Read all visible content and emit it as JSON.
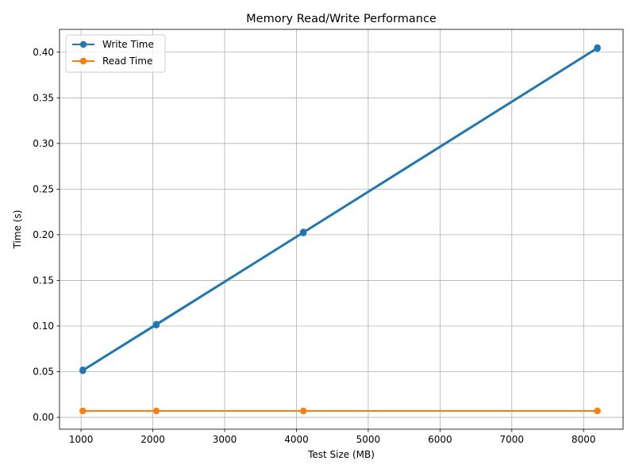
{
  "chart_data": {
    "type": "line",
    "title": "Memory Read/Write Performance",
    "xlabel": "Test Size (MB)",
    "ylabel": "Time (s)",
    "xlim": [
      700,
      8550
    ],
    "ylim": [
      -0.013,
      0.425
    ],
    "xticks": [
      1000,
      2000,
      3000,
      4000,
      5000,
      6000,
      7000,
      8000
    ],
    "yticks": [
      0.0,
      0.05,
      0.1,
      0.15,
      0.2,
      0.25,
      0.3,
      0.35,
      0.4
    ],
    "xtick_labels": [
      "1000",
      "2000",
      "3000",
      "4000",
      "5000",
      "6000",
      "7000",
      "8000"
    ],
    "ytick_labels": [
      "0.00",
      "0.05",
      "0.10",
      "0.15",
      "0.20",
      "0.25",
      "0.30",
      "0.35",
      "0.40"
    ],
    "grid": true,
    "legend_position": "top-left",
    "series": [
      {
        "name": "Write Time",
        "color": "#1f77b4",
        "marker": "circle",
        "x": [
          1024,
          2048,
          4096,
          8192,
          1024,
          2048,
          4096,
          8192
        ],
        "y": [
          0.051,
          0.101,
          0.202,
          0.404,
          0.052,
          0.102,
          0.203,
          0.405
        ]
      },
      {
        "name": "Read Time",
        "color": "#ff7f0e",
        "marker": "circle",
        "x": [
          1024,
          2048,
          4096,
          8192
        ],
        "y": [
          0.007,
          0.007,
          0.007,
          0.007
        ]
      }
    ]
  }
}
